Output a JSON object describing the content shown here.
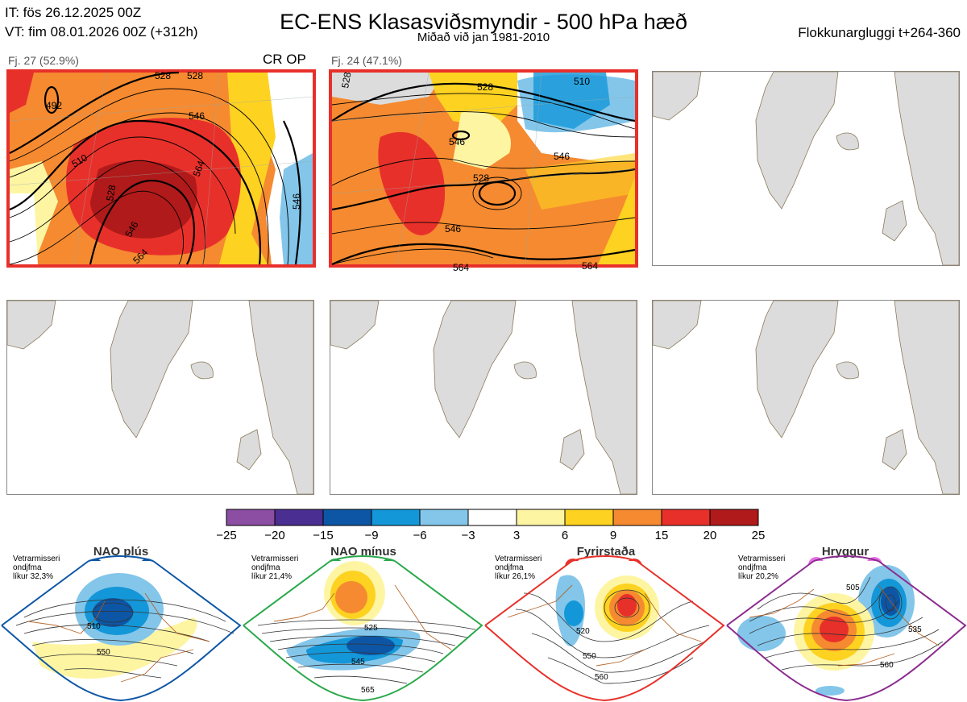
{
  "header": {
    "it_line": "IT: fös 26.12.2025 00Z",
    "vt_line": "VT: fim 08.01.2026 00Z  (+312h)",
    "title": "EC-ENS Klasasviðsmyndir - 500 hPa hæð",
    "subtitle": "Miðað við jan 1981-2010",
    "window": "Flokkunargluggi t+264-360"
  },
  "panels": [
    {
      "label": "Fj. 27 (52.9%)",
      "tag": "CR OP",
      "selected": true,
      "contour_labels": [
        "492",
        "510",
        "528",
        "546",
        "564",
        "528",
        "546",
        "564",
        "546",
        "528"
      ]
    },
    {
      "label": "Fj. 24 (47.1%)",
      "tag": "",
      "selected": true,
      "contour_labels": [
        "528",
        "528",
        "510",
        "546",
        "546",
        "528",
        "546",
        "564",
        "564"
      ]
    },
    {
      "label": "",
      "tag": "",
      "selected": false,
      "contour_labels": []
    },
    {
      "label": "",
      "tag": "",
      "selected": false,
      "contour_labels": []
    },
    {
      "label": "",
      "tag": "",
      "selected": false,
      "contour_labels": []
    },
    {
      "label": "",
      "tag": "",
      "selected": false,
      "contour_labels": []
    }
  ],
  "colorbar": {
    "colors": [
      "#8b4ea3",
      "#4b2e91",
      "#0d56a6",
      "#1497d8",
      "#83c6ea",
      "#ffffff",
      "#fef5a3",
      "#fdd221",
      "#f58a30",
      "#e8302a",
      "#b01a1a"
    ],
    "labels": [
      "−25",
      "−20",
      "−15",
      "−9",
      "−6",
      "−3",
      "3",
      "6",
      "9",
      "15",
      "20",
      "25"
    ]
  },
  "regimes": [
    {
      "name": "NAO plús",
      "note": [
        "Vetrarmisseri",
        "ondjfma",
        "líkur 32,3%"
      ],
      "color": "#0d56a6",
      "contour_labels": [
        "510",
        "550"
      ]
    },
    {
      "name": "NAO mínus",
      "note": [
        "Vetrarmisseri",
        "ondjfma",
        "líkur 21,4%"
      ],
      "color": "#2aa84a",
      "contour_labels": [
        "525",
        "545",
        "565"
      ]
    },
    {
      "name": "Fyrirstaða",
      "note": [
        "Vetrarmisseri",
        "ondjfma",
        "líkur 26,1%"
      ],
      "color": "#e8302a",
      "contour_labels": [
        "520",
        "550",
        "560"
      ]
    },
    {
      "name": "Hryggur",
      "note": [
        "Vetrarmisseri",
        "ondjfma",
        "líkur 20,2%"
      ],
      "color": "#8b2c8f",
      "contour_labels": [
        "505",
        "535",
        "560"
      ]
    }
  ]
}
